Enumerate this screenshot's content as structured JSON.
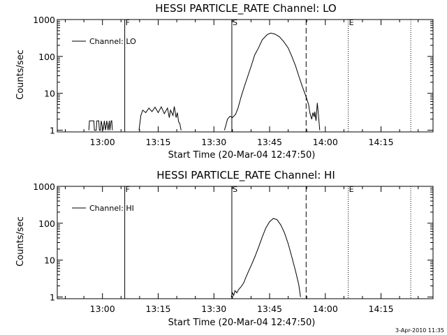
{
  "footer_stamp": "3-Apr-2010 11:35",
  "chart_data": [
    {
      "type": "line",
      "title": "HESSI PARTICLE_RATE Channel: LO",
      "xlabel": "Start Time (20-Mar-04 12:47:50)",
      "ylabel": "Counts/sec",
      "y_scale": "log",
      "xlim": [
        "12:47:50",
        "14:29:00"
      ],
      "ylim": [
        0.9,
        1000
      ],
      "x_ticks": [
        "13:00",
        "13:15",
        "13:30",
        "13:45",
        "14:00",
        "14:15"
      ],
      "y_ticks": [
        {
          "value": 1,
          "label": "1"
        },
        {
          "value": 10,
          "label": "10"
        },
        {
          "value": 100,
          "label": "100"
        },
        {
          "value": 1000,
          "label": "1000"
        }
      ],
      "legend": {
        "position": "top-left",
        "entries": [
          "Channel: LO"
        ]
      },
      "markers": [
        {
          "label": "F",
          "time": "13:06:00",
          "style": "solid"
        },
        {
          "label": "S",
          "time": "13:34:50",
          "style": "solid"
        },
        {
          "label": "",
          "time": "13:54:50",
          "style": "dashed"
        },
        {
          "label": "E",
          "time": "14:06:10",
          "style": "dotted"
        },
        {
          "label": "",
          "time": "14:23:00",
          "style": "dotted"
        }
      ],
      "series": [
        {
          "name": "Channel: LO",
          "segments": [
            [
              [
                "12:56:20",
                1
              ],
              [
                "12:56:30",
                1.8
              ],
              [
                "12:57:40",
                1.8
              ],
              [
                "12:57:50",
                1
              ],
              [
                "12:58:20",
                1
              ],
              [
                "12:58:30",
                1.8
              ],
              [
                "12:59:00",
                1.8
              ],
              [
                "12:59:10",
                1
              ],
              [
                "12:59:30",
                1
              ],
              [
                "12:59:40",
                1.8
              ],
              [
                "13:00:10",
                1
              ],
              [
                "13:00:30",
                1.8
              ],
              [
                "13:00:50",
                1
              ],
              [
                "13:01:10",
                1.8
              ],
              [
                "13:01:30",
                1
              ],
              [
                "13:01:50",
                1.8
              ],
              [
                "13:02:00",
                1
              ],
              [
                "13:02:20",
                1.8
              ],
              [
                "13:02:30",
                1.8
              ],
              [
                "13:02:40",
                1
              ]
            ],
            [
              [
                "13:09:50",
                1
              ],
              [
                "13:10:20",
                2.5
              ],
              [
                "13:10:50",
                3.5
              ],
              [
                "13:11:40",
                3.0
              ],
              [
                "13:12:30",
                4.0
              ],
              [
                "13:13:20",
                3.2
              ],
              [
                "13:14:10",
                4.2
              ],
              [
                "13:15:00",
                3.0
              ],
              [
                "13:15:50",
                4.3
              ],
              [
                "13:16:40",
                2.8
              ],
              [
                "13:17:30",
                4.0
              ],
              [
                "13:18:00",
                2.2
              ],
              [
                "13:18:20",
                3.5
              ],
              [
                "13:19:00",
                2.5
              ],
              [
                "13:19:20",
                4.4
              ],
              [
                "13:19:50",
                2.2
              ],
              [
                "13:20:10",
                3.0
              ],
              [
                "13:20:30",
                1.7
              ],
              [
                "13:20:50",
                1.5
              ],
              [
                "13:21:10",
                1
              ]
            ],
            [
              [
                "13:32:50",
                1
              ],
              [
                "13:33:10",
                1.3
              ],
              [
                "13:33:40",
                2.0
              ],
              [
                "13:34:20",
                2.4
              ],
              [
                "13:35:00",
                2.2
              ],
              [
                "13:35:50",
                2.7
              ],
              [
                "13:36:30",
                4.0
              ],
              [
                "13:37:20",
                8
              ],
              [
                "13:38:10",
                15
              ],
              [
                "13:39:10",
                30
              ],
              [
                "13:40:10",
                60
              ],
              [
                "13:41:00",
                110
              ],
              [
                "13:42:00",
                170
              ],
              [
                "13:43:00",
                280
              ],
              [
                "13:44:20",
                390
              ],
              [
                "13:45:20",
                430
              ],
              [
                "13:46:30",
                400
              ],
              [
                "13:47:40",
                340
              ],
              [
                "13:48:50",
                250
              ],
              [
                "13:50:00",
                170
              ],
              [
                "13:51:00",
                100
              ],
              [
                "13:52:00",
                55
              ],
              [
                "13:52:50",
                30
              ],
              [
                "13:53:50",
                15
              ],
              [
                "13:54:50",
                8
              ],
              [
                "13:55:30",
                5
              ],
              [
                "13:55:50",
                3
              ],
              [
                "13:56:20",
                2
              ],
              [
                "13:56:40",
                3
              ],
              [
                "13:57:00",
                2.3
              ],
              [
                "13:57:10",
                3.2
              ],
              [
                "13:57:30",
                1.8
              ],
              [
                "13:57:50",
                5.5
              ],
              [
                "13:58:10",
                2.5
              ],
              [
                "13:58:30",
                1
              ]
            ]
          ]
        }
      ]
    },
    {
      "type": "line",
      "title": "HESSI PARTICLE_RATE Channel: HI",
      "xlabel": "Start Time (20-Mar-04 12:47:50)",
      "ylabel": "Counts/sec",
      "y_scale": "log",
      "xlim": [
        "12:47:50",
        "14:29:00"
      ],
      "ylim": [
        0.9,
        1000
      ],
      "x_ticks": [
        "13:00",
        "13:15",
        "13:30",
        "13:45",
        "14:00",
        "14:15"
      ],
      "y_ticks": [
        {
          "value": 1,
          "label": "1"
        },
        {
          "value": 10,
          "label": "10"
        },
        {
          "value": 100,
          "label": "100"
        },
        {
          "value": 1000,
          "label": "1000"
        }
      ],
      "legend": {
        "position": "top-left",
        "entries": [
          "Channel: HI"
        ]
      },
      "markers": [
        {
          "label": "F",
          "time": "13:06:00",
          "style": "solid"
        },
        {
          "label": "S",
          "time": "13:34:50",
          "style": "solid"
        },
        {
          "label": "",
          "time": "13:54:50",
          "style": "dashed"
        },
        {
          "label": "E",
          "time": "14:06:10",
          "style": "dotted"
        },
        {
          "label": "",
          "time": "14:23:00",
          "style": "dotted"
        }
      ],
      "series": [
        {
          "name": "Channel: HI",
          "segments": [
            [
              [
                "13:34:40",
                1
              ],
              [
                "13:35:00",
                1.3
              ],
              [
                "13:35:20",
                1.1
              ],
              [
                "13:35:40",
                1.5
              ],
              [
                "13:36:10",
                1.3
              ],
              [
                "13:36:40",
                1.6
              ],
              [
                "13:37:20",
                1.9
              ],
              [
                "13:38:00",
                2.4
              ],
              [
                "13:38:40",
                3.5
              ],
              [
                "13:39:20",
                5
              ],
              [
                "13:40:00",
                7
              ],
              [
                "13:41:00",
                12
              ],
              [
                "13:42:00",
                22
              ],
              [
                "13:43:00",
                42
              ],
              [
                "13:44:00",
                75
              ],
              [
                "13:45:00",
                110
              ],
              [
                "13:46:00",
                135
              ],
              [
                "13:47:00",
                125
              ],
              [
                "13:48:00",
                90
              ],
              [
                "13:49:00",
                55
              ],
              [
                "13:50:00",
                28
              ],
              [
                "13:51:00",
                12
              ],
              [
                "13:52:00",
                5
              ],
              [
                "13:52:50",
                2.2
              ],
              [
                "13:53:20",
                1
              ]
            ]
          ]
        }
      ]
    }
  ]
}
